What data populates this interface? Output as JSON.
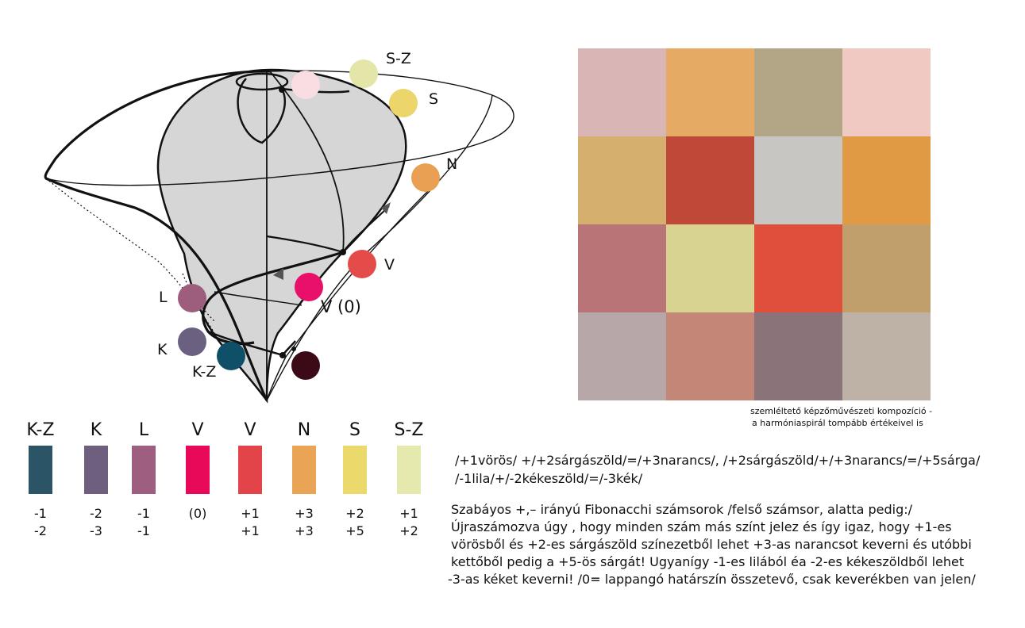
{
  "diagram": {
    "nodes": [
      {
        "id": "s-z-top",
        "label": "S-Z",
        "color": "#e4e5a8"
      },
      {
        "id": "pink-top",
        "label": "",
        "color": "#f9dde2"
      },
      {
        "id": "s",
        "label": "S",
        "color": "#ecd56a"
      },
      {
        "id": "n",
        "label": "N",
        "color": "#e9a052"
      },
      {
        "id": "v",
        "label": "V",
        "color": "#e44c4a"
      },
      {
        "id": "v0",
        "label": "V (0)",
        "color": "#e8106a"
      },
      {
        "id": "l",
        "label": "L",
        "color": "#9d5e7e"
      },
      {
        "id": "k",
        "label": "K",
        "color": "#6c6080"
      },
      {
        "id": "k-z",
        "label": "K-Z",
        "color": "#0f5068"
      },
      {
        "id": "dark",
        "label": "",
        "color": "#3b0a16"
      }
    ]
  },
  "composition": {
    "cells": [
      "#d9b5b5",
      "#e5aa64",
      "#b2a687",
      "#f0cac2",
      "#d4af6e",
      "#bf4838",
      "#c8c6c2",
      "#e19a44",
      "#b87476",
      "#d9d392",
      "#e04f3c",
      "#c19f6d",
      "#b8a7a9",
      "#c48677",
      "#8b737a",
      "#beb2a6"
    ],
    "caption_line1": "szemléltető képzőművészeti kompozíció -",
    "caption_line2": "a  harmóniaspirál tompább értékeivel is"
  },
  "swatches": [
    {
      "label": "K-Z",
      "color": "#2b5567",
      "top": "-1",
      "bottom": "-2"
    },
    {
      "label": "K",
      "color": "#6d5f7d",
      "top": "-2",
      "bottom": "-3"
    },
    {
      "label": "L",
      "color": "#9d5e7f",
      "top": "-1",
      "bottom": "-1"
    },
    {
      "label": "V",
      "color": "#e80a58",
      "top": "(0)",
      "bottom": ""
    },
    {
      "label": "V",
      "color": "#e2444a",
      "top": "+1",
      "bottom": "+1"
    },
    {
      "label": "N",
      "color": "#e9a455",
      "top": "+3",
      "bottom": "+3"
    },
    {
      "label": "S",
      "color": "#ecd96c",
      "top": "+2",
      "bottom": "+5"
    },
    {
      "label": "S-Z",
      "color": "#e6e9ad",
      "top": "+1",
      "bottom": "+2"
    }
  ],
  "formula": {
    "line1": "/+1vörös/ +/+2sárgászöld/=/+3narancs/, /+2sárgászöld/+/+3narancs/=/+5sárga/",
    "line2": "/-1lila/+/-2kékeszöld/=/-3kék/"
  },
  "description": {
    "lines": [
      "Szabáyos +,– irányú Fibonacchi számsorok  /felső számsor,  alatta pedig:/",
      "Újraszámozva úgy , hogy minden szám más színt jelez és így igaz, hogy +1-es",
      "vörösből és +2-es sárgászöld színezetből  lehet +3-as narancsot keverni és utóbbi",
      "kettőből pedig a +5-ös sárgát! Ugyanígy -1-es lilából éa -2-es kékeszöldből  lehet",
      "-3-as kéket keverni! /0= lappangó határszín összetevő, csak keverékben van jelen/"
    ]
  }
}
